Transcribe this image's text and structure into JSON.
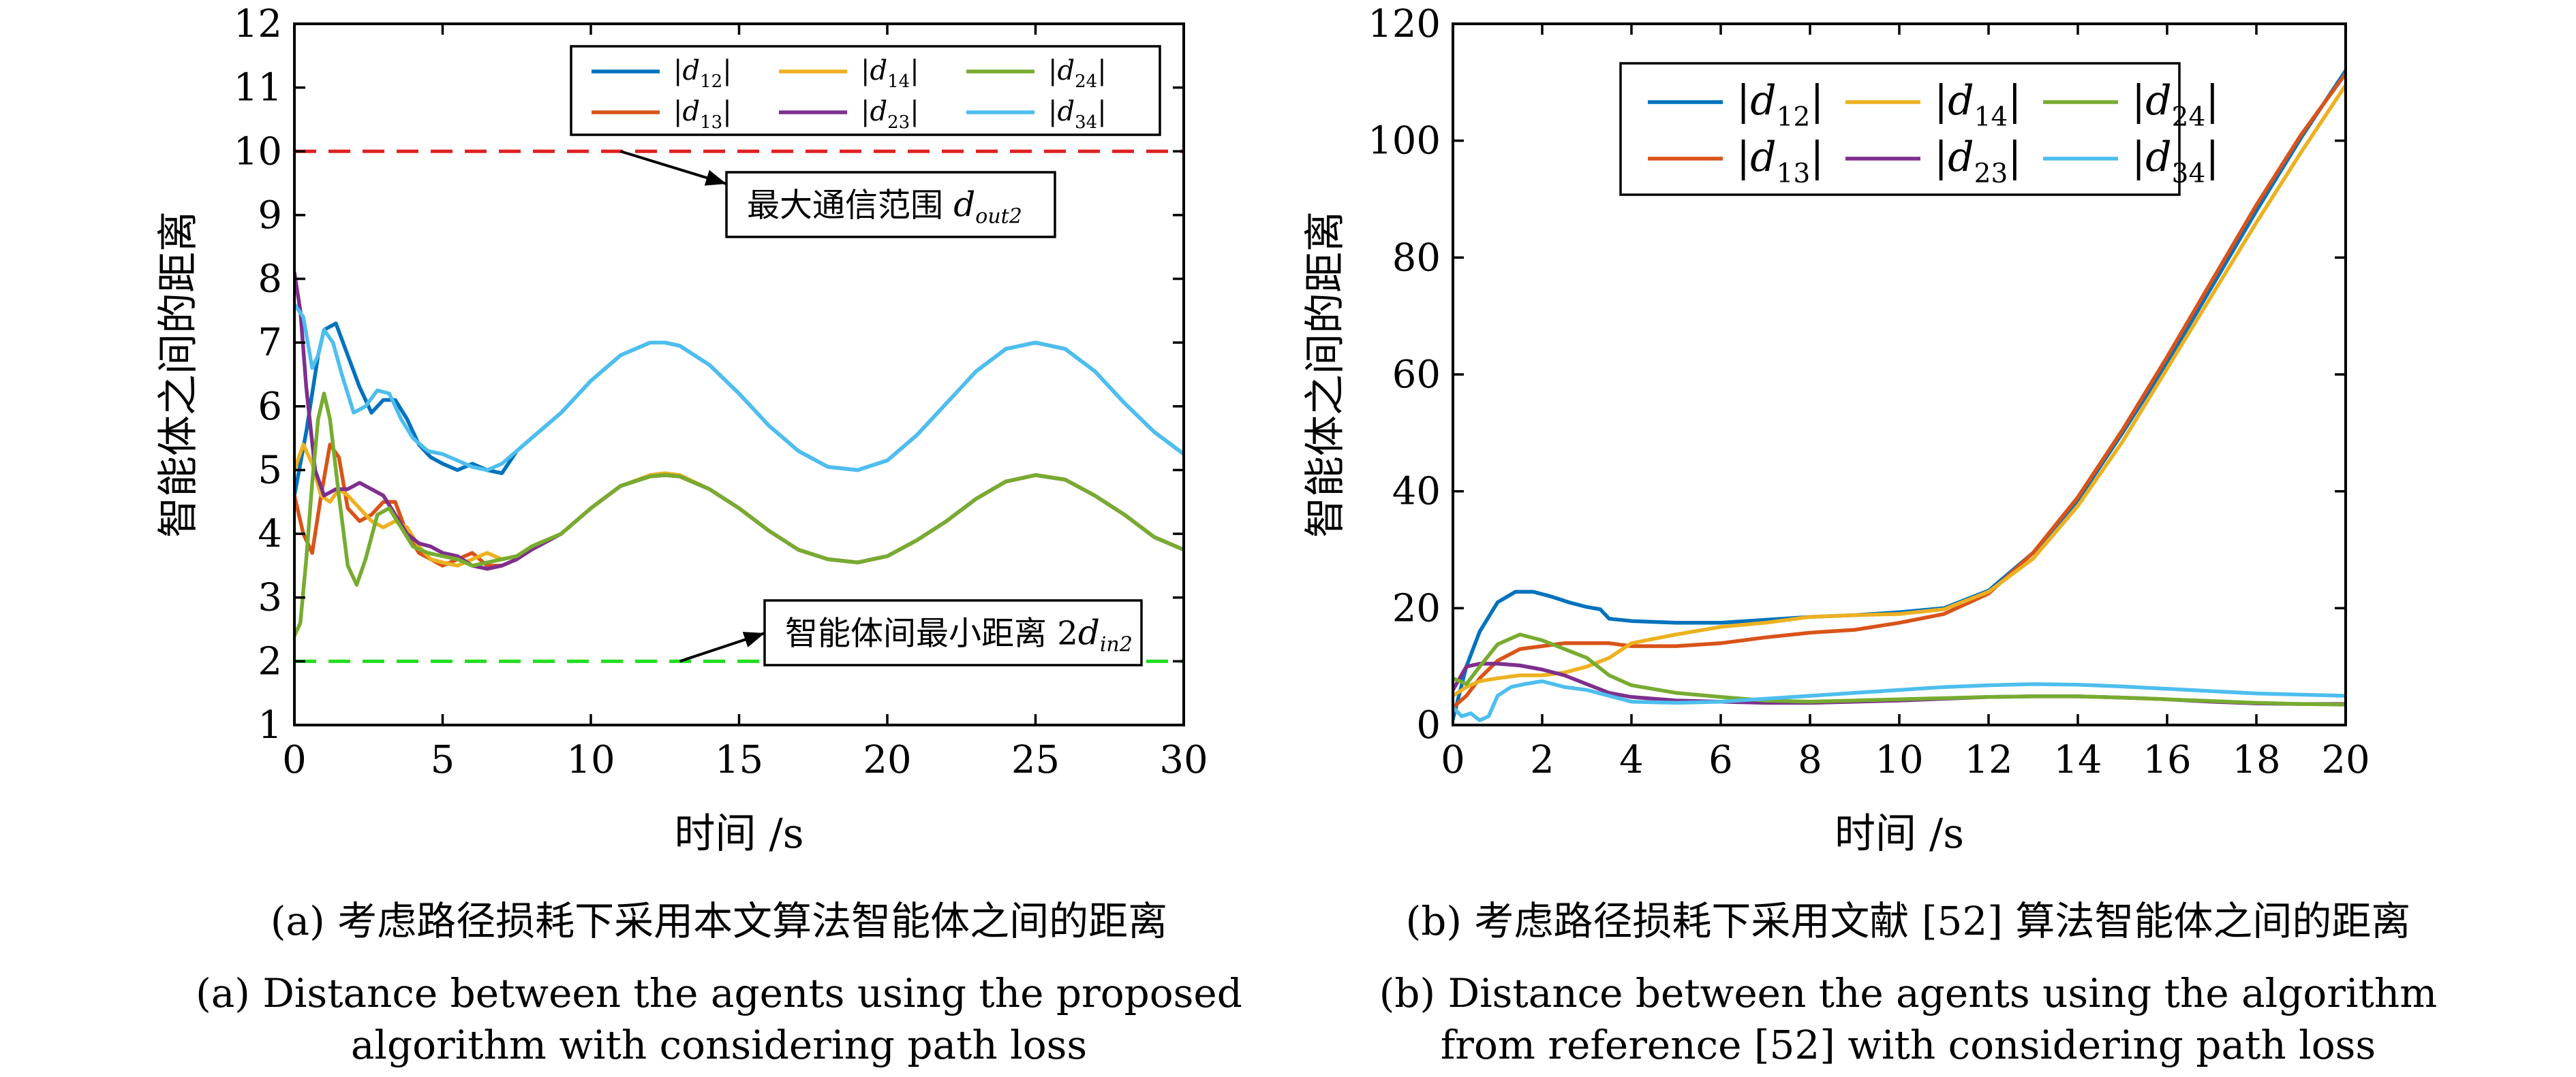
{
  "colors": {
    "d12": "#0072bd",
    "d13": "#d95319",
    "d14": "#edb120",
    "d23": "#7e2f8e",
    "d24": "#77ac30",
    "d34": "#4dbeee",
    "limit_max": "#e02020",
    "limit_min": "#22dd22"
  },
  "chart_data": [
    {
      "type": "line",
      "xlabel": "时间 /s",
      "ylabel": "智能体之间的距离",
      "xlim": [
        0,
        30
      ],
      "ylim": [
        1,
        12
      ],
      "xticks": [
        "0",
        "5",
        "10",
        "15",
        "20",
        "25",
        "30"
      ],
      "yticks": [
        "1",
        "2",
        "3",
        "4",
        "5",
        "6",
        "7",
        "8",
        "9",
        "10",
        "11",
        "12"
      ],
      "legend_position": "top-right",
      "legend_columns": 3,
      "series": [
        {
          "name": "|d12|",
          "x": [
            0,
            0.4,
            0.8,
            1.0,
            1.4,
            1.8,
            2.2,
            2.6,
            3.0,
            3.4,
            3.8,
            4.2,
            4.6,
            5.0,
            5.5,
            6.0,
            6.5,
            7.0,
            7.5,
            8.0,
            9,
            10,
            11,
            12,
            12.5,
            13,
            14,
            15,
            16,
            17,
            18,
            19,
            20,
            21,
            22,
            23,
            24,
            25,
            26,
            27,
            28,
            29,
            30
          ],
          "y": [
            4.6,
            5.6,
            6.8,
            7.2,
            7.3,
            6.8,
            6.3,
            5.9,
            6.1,
            6.1,
            5.8,
            5.4,
            5.2,
            5.1,
            5.0,
            5.1,
            5.0,
            4.95,
            5.3,
            5.5,
            5.9,
            6.4,
            6.8,
            7.0,
            7.0,
            6.95,
            6.65,
            6.2,
            5.7,
            5.3,
            5.05,
            5.0,
            5.15,
            5.55,
            6.05,
            6.55,
            6.9,
            7.0,
            6.9,
            6.55,
            6.05,
            5.6,
            5.25
          ]
        },
        {
          "name": "|d13|",
          "x": [
            0,
            0.3,
            0.6,
            0.9,
            1.2,
            1.5,
            1.8,
            2.2,
            2.6,
            3.0,
            3.4,
            3.8,
            4.2,
            4.6,
            5.0,
            5.5,
            6.0,
            6.5,
            7.0,
            7.5,
            8.0,
            9,
            10,
            11,
            12,
            12.5,
            13,
            14,
            15,
            16,
            17,
            18,
            19,
            20,
            21,
            22,
            23,
            24,
            25,
            26,
            27,
            28,
            29,
            30
          ],
          "y": [
            4.6,
            4.0,
            3.7,
            4.6,
            5.4,
            5.2,
            4.4,
            4.2,
            4.3,
            4.5,
            4.5,
            4.0,
            3.7,
            3.6,
            3.5,
            3.6,
            3.7,
            3.5,
            3.5,
            3.6,
            3.8,
            4.0,
            4.4,
            4.75,
            4.9,
            4.92,
            4.9,
            4.7,
            4.4,
            4.05,
            3.75,
            3.6,
            3.55,
            3.65,
            3.9,
            4.2,
            4.55,
            4.82,
            4.92,
            4.85,
            4.6,
            4.3,
            3.95,
            3.75
          ]
        },
        {
          "name": "|d14|",
          "x": [
            0,
            0.3,
            0.6,
            0.9,
            1.2,
            1.5,
            1.8,
            2.2,
            2.6,
            3.0,
            3.4,
            3.8,
            4.2,
            4.6,
            5.0,
            5.5,
            6.0,
            6.5,
            7.0,
            7.5,
            8.0,
            9,
            10,
            11,
            12,
            12.5,
            13,
            14,
            15,
            16,
            17,
            18,
            19,
            20,
            21,
            22,
            23,
            24,
            25,
            26,
            27,
            28,
            29,
            30
          ],
          "y": [
            5.0,
            5.4,
            5.1,
            4.6,
            4.5,
            4.7,
            4.6,
            4.4,
            4.2,
            4.1,
            4.2,
            4.1,
            3.8,
            3.6,
            3.55,
            3.5,
            3.6,
            3.7,
            3.6,
            3.65,
            3.8,
            4.0,
            4.4,
            4.75,
            4.92,
            4.95,
            4.92,
            4.7,
            4.4,
            4.05,
            3.75,
            3.6,
            3.55,
            3.65,
            3.9,
            4.2,
            4.55,
            4.82,
            4.92,
            4.85,
            4.6,
            4.3,
            3.95,
            3.75
          ]
        },
        {
          "name": "|d23|",
          "x": [
            0,
            0.2,
            0.4,
            0.7,
            1.0,
            1.4,
            1.8,
            2.2,
            2.6,
            3.0,
            3.4,
            3.8,
            4.2,
            4.6,
            5.0,
            5.5,
            6.0,
            6.5,
            7.0,
            7.5,
            8.0,
            9,
            10,
            11,
            12,
            12.5,
            13,
            14,
            15,
            16,
            17,
            18,
            19,
            20,
            21,
            22,
            23,
            24,
            25,
            26,
            27,
            28,
            29,
            30
          ],
          "y": [
            8.1,
            7.5,
            6.3,
            5.0,
            4.6,
            4.7,
            4.7,
            4.8,
            4.7,
            4.6,
            4.3,
            4.0,
            3.85,
            3.8,
            3.7,
            3.65,
            3.5,
            3.45,
            3.5,
            3.6,
            3.75,
            4.0,
            4.4,
            4.75,
            4.9,
            4.92,
            4.9,
            4.7,
            4.4,
            4.05,
            3.75,
            3.6,
            3.55,
            3.65,
            3.9,
            4.2,
            4.55,
            4.82,
            4.92,
            4.85,
            4.6,
            4.3,
            3.95,
            3.75
          ]
        },
        {
          "name": "|d24|",
          "x": [
            0,
            0.2,
            0.4,
            0.6,
            0.8,
            1.0,
            1.2,
            1.5,
            1.8,
            2.1,
            2.4,
            2.8,
            3.2,
            3.6,
            4.0,
            4.5,
            5.0,
            5.5,
            6.0,
            6.5,
            7.0,
            7.5,
            8.0,
            9,
            10,
            11,
            12,
            12.5,
            13,
            14,
            15,
            16,
            17,
            18,
            19,
            20,
            21,
            22,
            23,
            24,
            25,
            26,
            27,
            28,
            29,
            30
          ],
          "y": [
            2.4,
            2.6,
            3.6,
            4.8,
            5.8,
            6.2,
            5.8,
            4.6,
            3.5,
            3.2,
            3.6,
            4.3,
            4.4,
            4.1,
            3.8,
            3.7,
            3.65,
            3.6,
            3.5,
            3.55,
            3.6,
            3.65,
            3.8,
            4.0,
            4.4,
            4.75,
            4.9,
            4.92,
            4.9,
            4.7,
            4.4,
            4.05,
            3.75,
            3.6,
            3.55,
            3.65,
            3.9,
            4.2,
            4.55,
            4.82,
            4.92,
            4.85,
            4.6,
            4.3,
            3.95,
            3.75
          ]
        },
        {
          "name": "|d34|",
          "x": [
            0,
            0.3,
            0.6,
            0.8,
            1.0,
            1.3,
            1.6,
            2.0,
            2.4,
            2.8,
            3.2,
            3.6,
            4.0,
            4.5,
            5.0,
            5.5,
            6.0,
            6.5,
            7.0,
            7.5,
            8.0,
            9,
            10,
            11,
            12,
            12.5,
            13,
            14,
            15,
            16,
            17,
            18,
            19,
            20,
            21,
            22,
            23,
            24,
            25,
            26,
            27,
            28,
            29,
            30
          ],
          "y": [
            7.6,
            7.4,
            6.6,
            6.8,
            7.2,
            7.0,
            6.5,
            5.9,
            6.0,
            6.25,
            6.2,
            5.8,
            5.5,
            5.3,
            5.25,
            5.15,
            5.05,
            5.0,
            5.1,
            5.3,
            5.5,
            5.9,
            6.4,
            6.8,
            7.0,
            7.0,
            6.95,
            6.65,
            6.2,
            5.7,
            5.3,
            5.05,
            5.0,
            5.15,
            5.55,
            6.05,
            6.55,
            6.9,
            7.0,
            6.9,
            6.55,
            6.05,
            5.6,
            5.25
          ]
        }
      ],
      "reference_lines": [
        {
          "y": 10,
          "color": "limit_max",
          "style": "dashed"
        },
        {
          "y": 2,
          "color": "limit_min",
          "style": "dashed"
        }
      ],
      "annotations": [
        {
          "main": "最大通信范围 ",
          "sym": "d",
          "sub": "out2",
          "arrow_to_x": 11,
          "arrow_to_y": 10
        },
        {
          "main": "智能体间最小距离 2",
          "sym": "d",
          "sub": "in2",
          "arrow_to_x": 13,
          "arrow_to_y": 2
        }
      ]
    },
    {
      "type": "line",
      "xlabel": "时间 /s",
      "ylabel": "智能体之间的距离",
      "xlim": [
        0,
        20
      ],
      "ylim": [
        0,
        120
      ],
      "xticks": [
        "0",
        "2",
        "4",
        "6",
        "8",
        "10",
        "12",
        "14",
        "16",
        "18",
        "20"
      ],
      "yticks": [
        "0",
        "20",
        "40",
        "60",
        "80",
        "100",
        "120"
      ],
      "legend_position": "top-left",
      "legend_columns": 3,
      "series": [
        {
          "name": "|d12|",
          "x": [
            0,
            0.3,
            0.6,
            1.0,
            1.4,
            1.8,
            2.2,
            2.6,
            3.0,
            3.3,
            3.5,
            4.0,
            5,
            6,
            7,
            8,
            9,
            10,
            11,
            12,
            13,
            14,
            15,
            16,
            17,
            18,
            19,
            20
          ],
          "y": [
            1,
            10,
            16,
            21,
            22.8,
            22.8,
            22,
            21,
            20.2,
            19.8,
            18.2,
            17.8,
            17.5,
            17.5,
            18,
            18.5,
            18.8,
            19.3,
            20,
            23,
            29.5,
            38.5,
            50,
            62,
            75,
            88,
            100.5,
            112
          ]
        },
        {
          "name": "|d13|",
          "x": [
            0,
            0.3,
            0.6,
            1.0,
            1.5,
            2.0,
            2.5,
            3.0,
            3.5,
            4,
            5,
            6,
            7,
            8,
            9,
            10,
            11,
            12,
            13,
            14,
            15,
            16,
            17,
            18,
            19,
            20
          ],
          "y": [
            3,
            5,
            8,
            11,
            13,
            13.5,
            14,
            14,
            14,
            13.5,
            13.5,
            14,
            15,
            15.8,
            16.3,
            17.5,
            19,
            22.5,
            29.5,
            39,
            50.5,
            63,
            76,
            89,
            101,
            111.5
          ]
        },
        {
          "name": "|d14|",
          "x": [
            0,
            0.3,
            0.6,
            1.0,
            1.5,
            2.0,
            2.5,
            3.0,
            3.5,
            4,
            5,
            6,
            7,
            8,
            9,
            10,
            11,
            12,
            13,
            14,
            15,
            16,
            17,
            18,
            19,
            20
          ],
          "y": [
            5,
            6.5,
            7.5,
            8,
            8.5,
            8.5,
            9,
            10,
            11.5,
            14,
            15.5,
            16.8,
            17.5,
            18.5,
            18.8,
            19,
            19.8,
            22.8,
            28.5,
            37.5,
            48.5,
            61,
            73.5,
            86,
            98,
            109.5
          ]
        },
        {
          "name": "|d23|",
          "x": [
            0,
            0.3,
            0.6,
            1.0,
            1.5,
            2.0,
            2.5,
            3.0,
            3.5,
            4,
            5,
            6,
            7,
            8,
            9,
            10,
            11,
            12,
            13,
            14,
            15,
            16,
            17,
            18,
            19,
            20
          ],
          "y": [
            6,
            10,
            10.5,
            10.5,
            10.2,
            9.5,
            8.5,
            7,
            5.5,
            4.8,
            4.2,
            4,
            3.8,
            3.8,
            4,
            4.2,
            4.5,
            4.8,
            4.9,
            4.9,
            4.7,
            4.4,
            4,
            3.7,
            3.6,
            3.6
          ]
        },
        {
          "name": "|d24|",
          "x": [
            0,
            0.3,
            0.6,
            1.0,
            1.5,
            2.0,
            2.5,
            3.0,
            3.5,
            4,
            5,
            6,
            7,
            8,
            9,
            10,
            11,
            12,
            13,
            14,
            15,
            16,
            17,
            18,
            19,
            20
          ],
          "y": [
            8,
            7,
            10,
            13.8,
            15.5,
            14.5,
            13,
            11.5,
            8.5,
            6.8,
            5.5,
            4.8,
            4.2,
            4,
            4.2,
            4.4,
            4.6,
            4.8,
            4.9,
            4.9,
            4.7,
            4.4,
            4.1,
            3.8,
            3.6,
            3.5
          ]
        },
        {
          "name": "|d34|",
          "x": [
            0,
            0.2,
            0.4,
            0.6,
            0.8,
            1.0,
            1.3,
            1.6,
            2.0,
            2.5,
            3.0,
            3.5,
            4,
            5,
            6,
            7,
            8,
            9,
            10,
            11,
            12,
            13,
            14,
            15,
            16,
            17,
            18,
            19,
            20
          ],
          "y": [
            3,
            1.5,
            2,
            0.8,
            1.5,
            5,
            6.5,
            7,
            7.5,
            6.5,
            6,
            5,
            4,
            3.8,
            4,
            4.5,
            5,
            5.5,
            6,
            6.5,
            6.8,
            7,
            6.9,
            6.6,
            6.2,
            5.8,
            5.4,
            5.2,
            5
          ]
        }
      ]
    }
  ],
  "captions": [
    {
      "zh": "(a) 考虑路径损耗下采用本文算法智能体之间的距离",
      "en1": "(a) Distance between the agents using the proposed",
      "en2": "algorithm with considering path loss"
    },
    {
      "zh": "(b) 考虑路径损耗下采用文献 [52] 算法智能体之间的距离",
      "en1": "(b) Distance between the agents using the algorithm",
      "en2": "from reference [52] with considering path loss"
    }
  ]
}
